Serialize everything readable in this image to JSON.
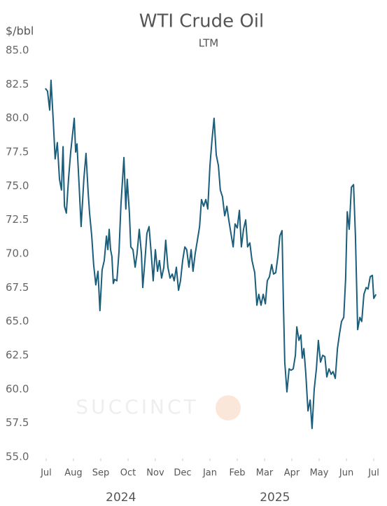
{
  "chart_data": {
    "type": "line",
    "title": "WTI Crude Oil",
    "subtitle": "LTM",
    "y_axis_label": "$/bbl",
    "watermark": "SUCCINCT",
    "x": [
      -0.03,
      0.05,
      0.13,
      0.18,
      0.26,
      0.33,
      0.41,
      0.49,
      0.56,
      0.62,
      0.67,
      0.74,
      0.82,
      0.9,
      1.03,
      1.08,
      1.13,
      1.21,
      1.28,
      1.38,
      1.46,
      1.54,
      1.59,
      1.67,
      1.74,
      1.82,
      1.9,
      1.97,
      2.05,
      2.13,
      2.21,
      2.26,
      2.31,
      2.36,
      2.41,
      2.46,
      2.51,
      2.59,
      2.67,
      2.74,
      2.85,
      2.92,
      2.97,
      3.05,
      3.1,
      3.18,
      3.26,
      3.33,
      3.41,
      3.49,
      3.54,
      3.62,
      3.69,
      3.77,
      3.85,
      3.92,
      4.0,
      4.08,
      4.15,
      4.23,
      4.31,
      4.38,
      4.46,
      4.54,
      4.62,
      4.69,
      4.77,
      4.85,
      4.92,
      5.0,
      5.08,
      5.15,
      5.23,
      5.31,
      5.38,
      5.46,
      5.54,
      5.62,
      5.69,
      5.77,
      5.85,
      5.92,
      6.0,
      6.08,
      6.15,
      6.23,
      6.31,
      6.38,
      6.46,
      6.54,
      6.62,
      6.69,
      6.77,
      6.85,
      6.92,
      7.0,
      7.08,
      7.15,
      7.23,
      7.31,
      7.38,
      7.46,
      7.54,
      7.64,
      7.72,
      7.79,
      7.87,
      7.95,
      8.03,
      8.1,
      8.18,
      8.26,
      8.33,
      8.41,
      8.49,
      8.56,
      8.64,
      8.69,
      8.74,
      8.82,
      8.9,
      8.97,
      9.05,
      9.13,
      9.18,
      9.26,
      9.33,
      9.38,
      9.44,
      9.51,
      9.59,
      9.67,
      9.74,
      9.82,
      9.9,
      9.97,
      10.05,
      10.13,
      10.21,
      10.28,
      10.36,
      10.44,
      10.51,
      10.59,
      10.67,
      10.74,
      10.82,
      10.9,
      10.97,
      11.03,
      11.1,
      11.18,
      11.26,
      11.33,
      11.41,
      11.49,
      11.56,
      11.64,
      11.72,
      11.79,
      11.87,
      11.95,
      12.0,
      12.08
    ],
    "series": [
      {
        "name": "WTI",
        "color": "#1b5e7b",
        "values": [
          82.2,
          82.0,
          80.6,
          82.8,
          79.8,
          77.0,
          78.2,
          75.5,
          74.7,
          77.9,
          73.5,
          73.0,
          75.5,
          77.5,
          80.0,
          77.5,
          78.1,
          75.0,
          72.0,
          75.5,
          77.4,
          74.5,
          73.0,
          71.3,
          69.2,
          67.7,
          68.7,
          65.8,
          68.8,
          69.5,
          71.3,
          70.3,
          71.8,
          70.3,
          69.8,
          67.8,
          68.1,
          68.0,
          70.2,
          73.6,
          77.1,
          73.3,
          75.5,
          73.0,
          70.5,
          70.3,
          69.0,
          70.0,
          71.8,
          70.0,
          67.5,
          69.5,
          71.5,
          72.0,
          70.0,
          68.0,
          70.3,
          68.7,
          69.5,
          68.2,
          69.0,
          71.0,
          69.0,
          68.2,
          68.5,
          68.0,
          69.0,
          67.3,
          68.0,
          69.5,
          70.5,
          70.3,
          69.0,
          70.3,
          68.7,
          70.0,
          71.0,
          72.0,
          74.0,
          73.5,
          74.0,
          73.3,
          76.5,
          78.5,
          80.0,
          77.3,
          76.5,
          74.7,
          74.2,
          72.8,
          73.5,
          72.5,
          71.5,
          70.5,
          72.2,
          71.9,
          73.2,
          70.5,
          71.8,
          72.5,
          70.5,
          70.8,
          69.5,
          68.6,
          66.2,
          67.0,
          66.2,
          67.0,
          66.3,
          68.0,
          68.3,
          69.2,
          68.5,
          68.6,
          69.8,
          71.3,
          71.7,
          66.5,
          62.0,
          59.8,
          61.5,
          61.4,
          61.5,
          62.5,
          64.6,
          63.6,
          64.0,
          62.3,
          63.0,
          61.2,
          58.4,
          59.2,
          57.1,
          60.0,
          61.5,
          63.6,
          62.0,
          62.5,
          62.4,
          60.9,
          61.5,
          61.1,
          61.3,
          60.8,
          63.0,
          64.0,
          65.0,
          65.3,
          68.2,
          73.1,
          71.8,
          74.9,
          75.1,
          71.3,
          64.4,
          65.3,
          65.0,
          67.0,
          67.5,
          67.4,
          68.3,
          68.4,
          66.7,
          67.0
        ]
      }
    ],
    "xlim": [
      -0.28,
      12.28
    ],
    "xticks": [
      {
        "value": 0,
        "label": "Jul"
      },
      {
        "value": 1,
        "label": "Aug"
      },
      {
        "value": 2,
        "label": "Sep"
      },
      {
        "value": 3,
        "label": "Oct"
      },
      {
        "value": 4,
        "label": "Nov"
      },
      {
        "value": 5,
        "label": "Dec"
      },
      {
        "value": 6,
        "label": "Jan"
      },
      {
        "value": 7,
        "label": "Feb"
      },
      {
        "value": 8,
        "label": "Mar"
      },
      {
        "value": 9,
        "label": "Apr"
      },
      {
        "value": 10,
        "label": "May"
      },
      {
        "value": 11,
        "label": "Jun"
      },
      {
        "value": 12,
        "label": "Jul"
      }
    ],
    "x_group_labels": [
      {
        "value": 2.74,
        "label": "2024"
      },
      {
        "value": 8.38,
        "label": "2025"
      }
    ],
    "ylim": [
      55,
      85
    ],
    "yticks": [
      {
        "value": 85,
        "label": "85.0"
      },
      {
        "value": 82.5,
        "label": "82.5"
      },
      {
        "value": 80,
        "label": "80.0"
      },
      {
        "value": 77.5,
        "label": "77.5"
      },
      {
        "value": 75,
        "label": "75.0"
      },
      {
        "value": 72.5,
        "label": "72.5"
      },
      {
        "value": 70,
        "label": "70.0"
      },
      {
        "value": 67.5,
        "label": "67.5"
      },
      {
        "value": 65,
        "label": "65.0"
      },
      {
        "value": 62.5,
        "label": "62.5"
      },
      {
        "value": 60,
        "label": "60.0"
      },
      {
        "value": 57.5,
        "label": "57.5"
      },
      {
        "value": 55,
        "label": "55.0"
      }
    ],
    "grid": false
  }
}
